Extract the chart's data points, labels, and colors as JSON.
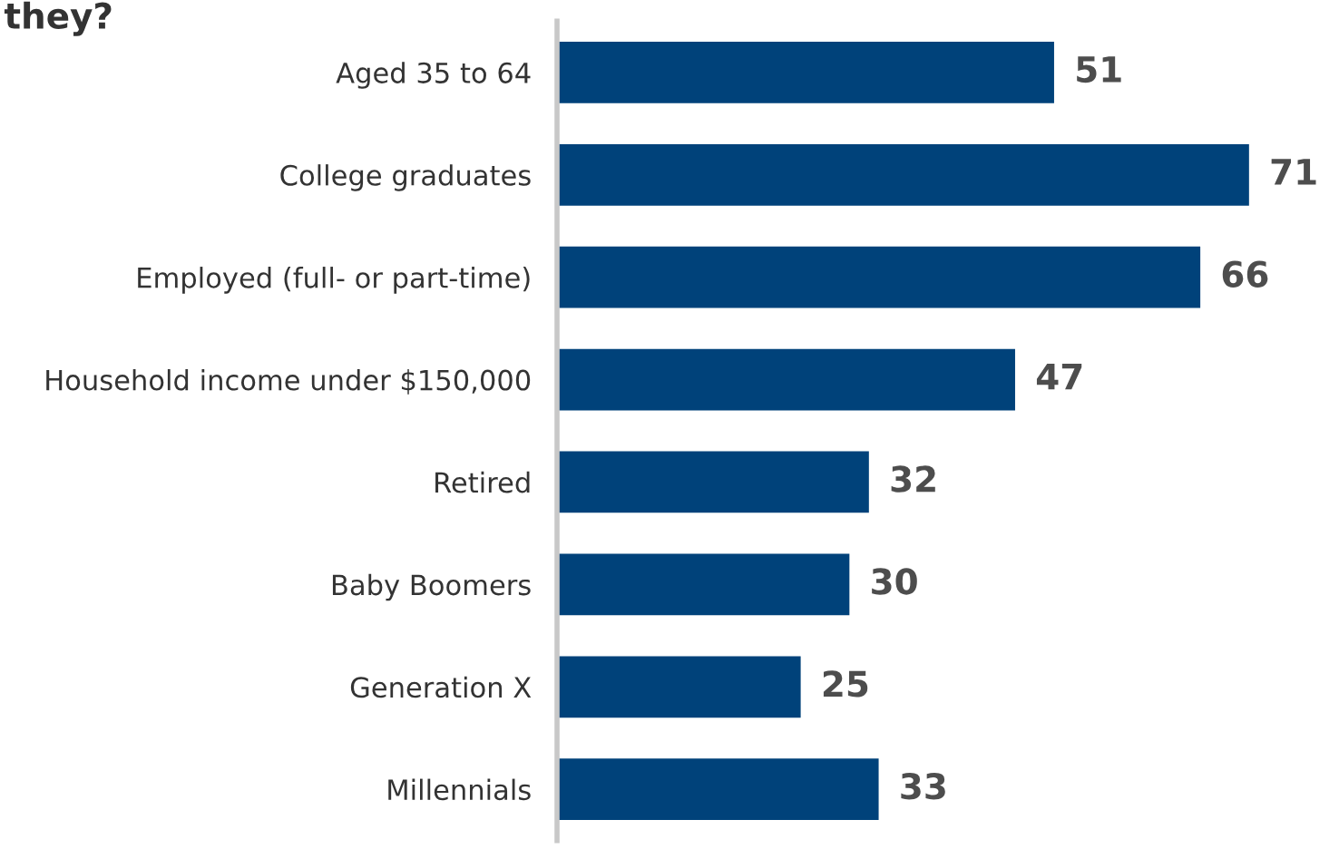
{
  "chart_data": {
    "type": "bar",
    "orientation": "horizontal",
    "title": "they?",
    "categories": [
      "Aged 35 to 64",
      "College graduates",
      "Employed (full- or part-time)",
      "Household income under $150,000",
      "Retired",
      "Baby Boomers",
      "Generation X",
      "Millennials"
    ],
    "values": [
      51,
      71,
      66,
      47,
      32,
      30,
      25,
      33
    ],
    "color": "#00427a",
    "data_labels": true,
    "grid": false,
    "legend": false
  }
}
